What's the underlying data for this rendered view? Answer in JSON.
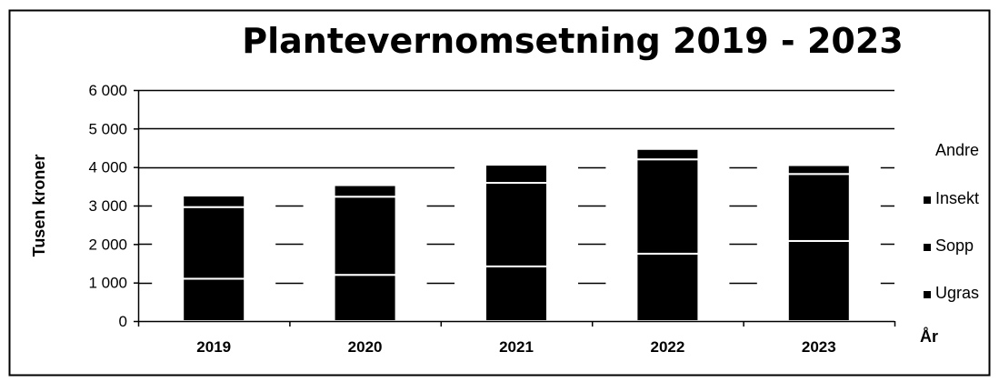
{
  "chart_data": {
    "type": "bar",
    "stacked": true,
    "title": "Plantevernomsetning 2019 - 2023",
    "xlabel": "År",
    "ylabel": "Tusen kroner",
    "ylim": [
      0,
      6000
    ],
    "yticks": [
      0,
      1000,
      2000,
      3000,
      4000,
      5000,
      6000
    ],
    "ytick_labels": [
      "0",
      "1 000",
      "2 000",
      "3 000",
      "4 000",
      "5 000",
      "6 000"
    ],
    "categories": [
      "2019",
      "2020",
      "2021",
      "2022",
      "2023"
    ],
    "series": [
      {
        "name": "Ugras",
        "values": [
          1100,
          1200,
          1420,
          1750,
          2080
        ],
        "color": "#000000"
      },
      {
        "name": "Sopp",
        "values": [
          1860,
          2030,
          2170,
          2450,
          1740
        ],
        "color": "#000000"
      },
      {
        "name": "Insekt",
        "values": [
          300,
          300,
          470,
          270,
          230
        ],
        "color": "#000000"
      },
      {
        "name": "Andre",
        "values": [
          0,
          0,
          0,
          0,
          0
        ],
        "color": "#000000"
      }
    ],
    "legend_position": "right",
    "legend_order": [
      "Andre",
      "Insekt",
      "Sopp",
      "Ugras"
    ],
    "grid": true
  }
}
